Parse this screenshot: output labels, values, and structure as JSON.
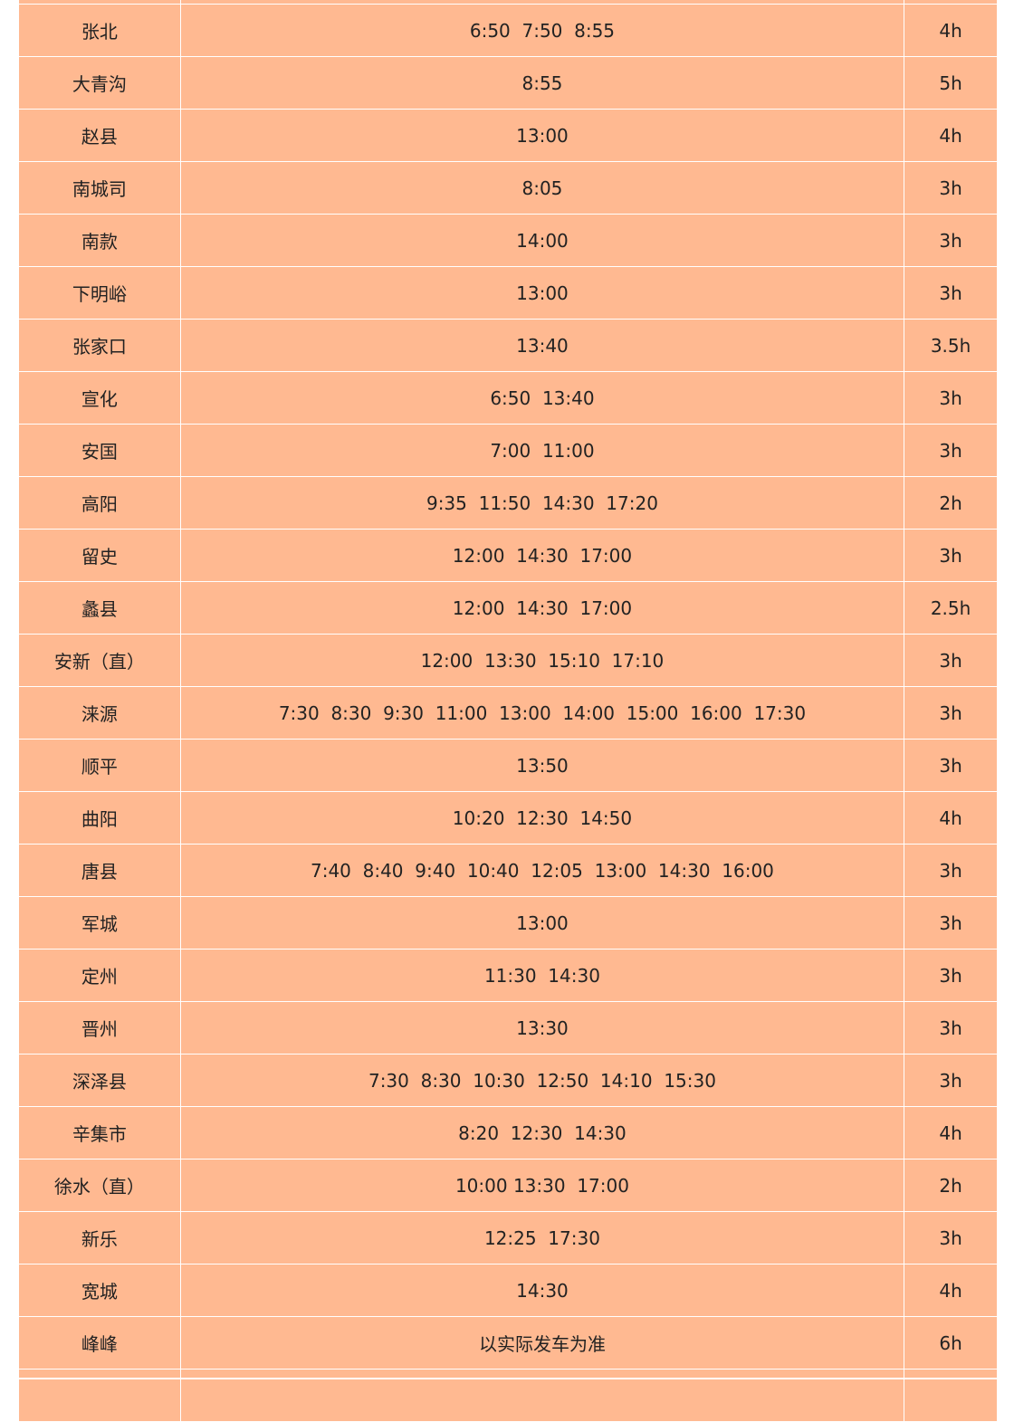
{
  "colors": {
    "cell_background": "#ffb991",
    "grid_lines": "#ffffff",
    "text": "#222222"
  },
  "rows": [
    {
      "station": "",
      "times": "",
      "duration": ""
    },
    {
      "station": "张北",
      "times": "6:50  7:50  8:55",
      "duration": "4h"
    },
    {
      "station": "大青沟",
      "times": "8:55",
      "duration": "5h"
    },
    {
      "station": "赵县",
      "times": "13:00",
      "duration": "4h"
    },
    {
      "station": "南城司",
      "times": "8:05",
      "duration": "3h"
    },
    {
      "station": "南款",
      "times": "14:00",
      "duration": "3h"
    },
    {
      "station": "下明峪",
      "times": "13:00",
      "duration": "3h"
    },
    {
      "station": "张家口",
      "times": "13:40",
      "duration": "3.5h"
    },
    {
      "station": "宣化",
      "times": "6:50  13:40",
      "duration": "3h"
    },
    {
      "station": "安国",
      "times": "7:00  11:00",
      "duration": "3h"
    },
    {
      "station": "高阳",
      "times": "9:35  11:50  14:30  17:20",
      "duration": "2h"
    },
    {
      "station": "留史",
      "times": "12:00  14:30  17:00",
      "duration": "3h"
    },
    {
      "station": "蠡县",
      "times": "12:00  14:30  17:00",
      "duration": "2.5h"
    },
    {
      "station": "安新（直）",
      "times": "12:00  13:30  15:10  17:10",
      "duration": "3h"
    },
    {
      "station": "涞源",
      "times": "7:30  8:30  9:30  11:00  13:00  14:00  15:00  16:00  17:30",
      "duration": "3h"
    },
    {
      "station": "顺平",
      "times": "13:50",
      "duration": "3h"
    },
    {
      "station": "曲阳",
      "times": "10:20  12:30  14:50",
      "duration": "4h"
    },
    {
      "station": "唐县",
      "times": "7:40  8:40  9:40  10:40  12:05  13:00  14:30  16:00",
      "duration": "3h"
    },
    {
      "station": "军城",
      "times": "13:00",
      "duration": "3h"
    },
    {
      "station": "定州",
      "times": "11:30  14:30",
      "duration": "3h"
    },
    {
      "station": "晋州",
      "times": "13:30",
      "duration": "3h"
    },
    {
      "station": "深泽县",
      "times": "7:30  8:30  10:30  12:50  14:10  15:30",
      "duration": "3h"
    },
    {
      "station": "辛集市",
      "times": "8:20  12:30  14:30",
      "duration": "4h"
    },
    {
      "station": "徐水（直）",
      "times": "10:00 13:30  17:00",
      "duration": "2h"
    },
    {
      "station": "新乐",
      "times": "12:25  17:30",
      "duration": "3h"
    },
    {
      "station": "宽城",
      "times": "14:30",
      "duration": "4h"
    },
    {
      "station": "峰峰",
      "times": "以实际发车为准",
      "duration": "6h"
    },
    {
      "station": "",
      "times": "",
      "duration": ""
    }
  ]
}
